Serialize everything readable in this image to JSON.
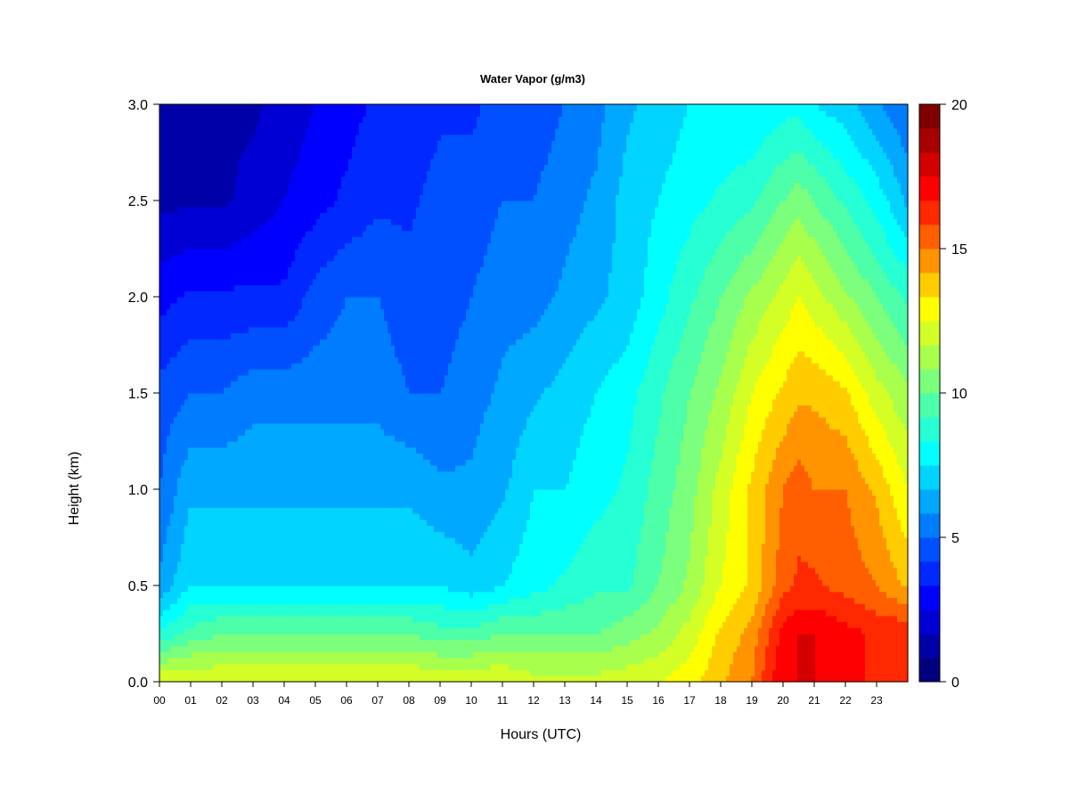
{
  "chart_data": {
    "type": "heatmap",
    "title": "Water Vapor (g/m3)",
    "xlabel": "Hours (UTC)",
    "ylabel": "Height (km)",
    "x_ticks": [
      "00",
      "01",
      "02",
      "03",
      "04",
      "05",
      "06",
      "07",
      "08",
      "09",
      "10",
      "11",
      "12",
      "13",
      "14",
      "15",
      "16",
      "17",
      "18",
      "19",
      "20",
      "21",
      "22",
      "23"
    ],
    "xlim": [
      0,
      24
    ],
    "y_ticks": [
      0.0,
      0.5,
      1.0,
      1.5,
      2.0,
      2.5,
      3.0
    ],
    "y_tick_labels": [
      "0.0",
      "0.5",
      "1.0",
      "1.5",
      "2.0",
      "2.5",
      "3.0"
    ],
    "ylim": [
      0,
      3.0
    ],
    "colorbar": {
      "range": [
        0,
        20
      ],
      "ticks": [
        0,
        5,
        10,
        15,
        20
      ],
      "tick_labels": [
        "0",
        "5",
        "10",
        "15",
        "20"
      ],
      "colors": [
        "#00007f",
        "#0000a8",
        "#0000d4",
        "#0000ff",
        "#0028ff",
        "#0050ff",
        "#007cff",
        "#00a8ff",
        "#00d4ff",
        "#00ffff",
        "#26ffd4",
        "#4cffa8",
        "#7cff7c",
        "#a8ff4c",
        "#d4ff26",
        "#ffff00",
        "#ffcc00",
        "#ff9400",
        "#ff5f00",
        "#ff2800",
        "#ff0000",
        "#d40000",
        "#a80000",
        "#7f0000"
      ]
    },
    "height_km": [
      0.0,
      0.25,
      0.5,
      1.0,
      1.5,
      2.0,
      2.5,
      3.0
    ],
    "hours": [
      0,
      1,
      2,
      3,
      4,
      5,
      6,
      7,
      8,
      9,
      10,
      11,
      12,
      13,
      14,
      15,
      16,
      17,
      18,
      19,
      20,
      20.5,
      21,
      22,
      23,
      24
    ],
    "values": [
      [
        12.5,
        12.5,
        12.5,
        12.5,
        12.5,
        12.5,
        12.5,
        12.5,
        12.5,
        12.5,
        12.5,
        12.5,
        12.0,
        12.0,
        12.0,
        12.2,
        12.5,
        13.0,
        14.0,
        15.0,
        17.5,
        17.5,
        17.5,
        17.0,
        16.5,
        16.5
      ],
      [
        8.5,
        9.5,
        10.0,
        10.0,
        10.0,
        10.0,
        10.0,
        10.0,
        10.0,
        9.5,
        9.5,
        10.0,
        10.0,
        10.0,
        10.0,
        10.5,
        11.0,
        12.0,
        13.5,
        14.5,
        17.0,
        17.5,
        17.5,
        17.0,
        16.5,
        16.5
      ],
      [
        6.0,
        7.5,
        7.5,
        7.5,
        7.5,
        7.5,
        7.5,
        7.5,
        7.5,
        7.5,
        7.0,
        7.5,
        8.0,
        8.5,
        9.0,
        9.0,
        10.0,
        11.0,
        12.5,
        13.5,
        15.5,
        16.0,
        16.0,
        15.5,
        15.0,
        14.0
      ],
      [
        5.0,
        6.5,
        6.5,
        6.5,
        6.5,
        6.5,
        6.5,
        6.5,
        6.5,
        6.0,
        6.0,
        6.5,
        7.5,
        7.5,
        8.0,
        8.5,
        9.5,
        10.5,
        12.0,
        13.5,
        15.0,
        15.5,
        15.0,
        15.0,
        14.0,
        12.5
      ],
      [
        4.5,
        5.0,
        5.0,
        5.5,
        5.5,
        5.5,
        5.5,
        5.5,
        5.0,
        5.0,
        5.5,
        6.0,
        6.5,
        7.0,
        7.5,
        8.0,
        9.0,
        10.0,
        11.0,
        12.5,
        13.5,
        14.0,
        14.0,
        13.5,
        12.0,
        11.0
      ],
      [
        3.0,
        3.5,
        3.5,
        3.5,
        3.5,
        4.5,
        5.0,
        5.0,
        4.5,
        4.5,
        5.0,
        5.5,
        5.5,
        6.0,
        6.5,
        7.0,
        8.0,
        9.0,
        10.0,
        11.0,
        12.0,
        12.5,
        12.0,
        11.0,
        10.0,
        9.0
      ],
      [
        1.5,
        1.5,
        1.5,
        2.0,
        2.5,
        3.0,
        3.5,
        4.0,
        4.0,
        4.5,
        4.5,
        5.0,
        5.0,
        5.5,
        6.0,
        7.0,
        7.5,
        8.0,
        8.5,
        9.0,
        10.0,
        10.5,
        10.0,
        9.0,
        8.0,
        6.5
      ],
      [
        1.0,
        1.0,
        1.5,
        1.5,
        2.0,
        2.5,
        3.0,
        3.5,
        3.5,
        4.0,
        4.0,
        4.5,
        4.5,
        5.0,
        5.5,
        6.5,
        7.0,
        7.5,
        7.5,
        7.5,
        8.0,
        8.0,
        7.5,
        7.0,
        6.0,
        5.0
      ]
    ]
  }
}
